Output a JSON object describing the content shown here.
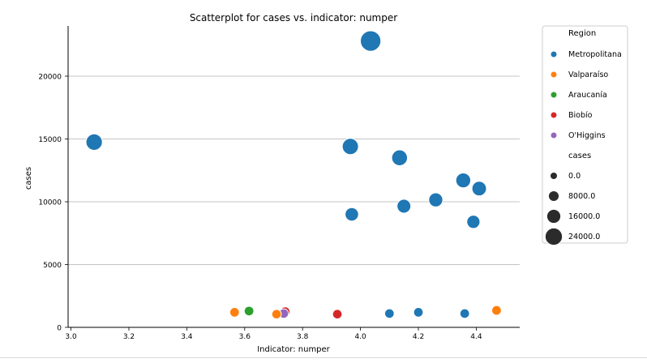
{
  "chart_data": {
    "type": "scatter",
    "title": "Scatterplot for cases vs. indicator: numper",
    "xlabel": "Indicator: numper",
    "ylabel": "cases",
    "xlim": [
      2.99,
      4.55
    ],
    "ylim": [
      0,
      24000
    ],
    "xticks": [
      3.0,
      3.2,
      3.4,
      3.6,
      3.8,
      4.0,
      4.2,
      4.4
    ],
    "xtick_labels": [
      "3.0",
      "3.2",
      "3.4",
      "3.6",
      "3.8",
      "4.0",
      "4.2",
      "4.4"
    ],
    "yticks": [
      0,
      5000,
      10000,
      15000,
      20000
    ],
    "ytick_labels": [
      "0",
      "5000",
      "10000",
      "15000",
      "20000"
    ],
    "grid": "horizontal",
    "legend_placement": "outside-right",
    "legend": {
      "hue_title": "Region",
      "size_title": "cases",
      "size_entries": [
        {
          "label": "0.0",
          "value": 0
        },
        {
          "label": "8000.0",
          "value": 8000
        },
        {
          "label": "16000.0",
          "value": 16000
        },
        {
          "label": "24000.0",
          "value": 24000
        }
      ]
    },
    "series": [
      {
        "name": "Metropolitana",
        "color": "#1f77b4",
        "points": [
          {
            "x": 4.035,
            "y": 22800
          },
          {
            "x": 3.08,
            "y": 14750
          },
          {
            "x": 3.965,
            "y": 14400
          },
          {
            "x": 4.135,
            "y": 13500
          },
          {
            "x": 4.355,
            "y": 11700
          },
          {
            "x": 4.41,
            "y": 11050
          },
          {
            "x": 4.26,
            "y": 10150
          },
          {
            "x": 4.15,
            "y": 9650
          },
          {
            "x": 3.97,
            "y": 9000
          },
          {
            "x": 4.39,
            "y": 8400
          },
          {
            "x": 4.1,
            "y": 1100
          },
          {
            "x": 4.2,
            "y": 1200
          },
          {
            "x": 4.36,
            "y": 1100
          }
        ]
      },
      {
        "name": "Valparaíso",
        "color": "#ff7f0e",
        "points": [
          {
            "x": 3.565,
            "y": 1200
          },
          {
            "x": 3.71,
            "y": 1050
          },
          {
            "x": 4.47,
            "y": 1350
          }
        ]
      },
      {
        "name": "Araucanía",
        "color": "#2ca02c",
        "points": [
          {
            "x": 3.615,
            "y": 1300
          }
        ]
      },
      {
        "name": "Biobío",
        "color": "#d62728",
        "points": [
          {
            "x": 3.74,
            "y": 1250
          },
          {
            "x": 3.92,
            "y": 1050
          }
        ]
      },
      {
        "name": "O'Higgins",
        "color": "#9467bd",
        "points": [
          {
            "x": 3.735,
            "y": 1100
          }
        ]
      }
    ]
  }
}
